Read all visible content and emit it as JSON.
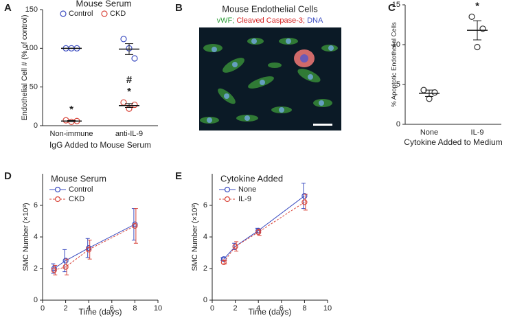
{
  "chart_data": [
    {
      "type": "dotplot",
      "panel": "A",
      "title": "Mouse Serum",
      "ylabel": "Endothelial Cell # (% of control)",
      "xlabel": "IgG Added to Mouse Serum",
      "categories": [
        "Non-immune",
        "anti-IL-9"
      ],
      "series": [
        {
          "name": "Control",
          "color": "#3b4cc0",
          "values": [
            [
              100,
              100,
              100
            ],
            [
              112,
              100,
              87
            ]
          ],
          "mean": [
            100,
            99
          ],
          "sem": [
            0,
            7
          ]
        },
        {
          "name": "CKD",
          "color": "#d9453a",
          "values": [
            [
              7,
              5,
              6
            ],
            [
              30,
              22,
              27
            ]
          ],
          "mean": [
            6,
            26
          ],
          "sem": [
            0.7,
            2.5
          ]
        }
      ],
      "annotations": [
        {
          "category": "Non-immune",
          "text": "*"
        },
        {
          "category": "anti-IL-9",
          "text": "*"
        },
        {
          "category": "anti-IL-9",
          "text": "#"
        }
      ],
      "ylim": [
        0,
        150
      ],
      "yticks": [
        0,
        50,
        100,
        150
      ]
    },
    {
      "type": "dotplot",
      "panel": "C",
      "ylabel": "% Apoptotic Endothelial Cells",
      "xlabel": "Cytokine Added to Medium",
      "categories": [
        "None",
        "IL-9"
      ],
      "series": [
        {
          "color": "#333333",
          "values": [
            [
              4.3,
              3.2,
              4.0
            ],
            [
              13.5,
              9.7,
              12.0
            ]
          ],
          "mean": [
            3.9,
            11.8
          ],
          "sem": [
            0.4,
            1.2
          ]
        }
      ],
      "annotations": [
        {
          "category": "IL-9",
          "text": "*"
        }
      ],
      "ylim": [
        0,
        15
      ],
      "yticks": [
        0,
        5,
        10,
        15
      ]
    },
    {
      "type": "line",
      "panel": "D",
      "title": "Mouse Serum",
      "ylabel": "SMC Number (×10³)",
      "xlabel": "Time (days)",
      "x": [
        1,
        2,
        4,
        8
      ],
      "series": [
        {
          "name": "Control",
          "color": "#3b4cc0",
          "dash": false,
          "values": [
            2.0,
            2.5,
            3.3,
            4.8
          ],
          "err": [
            0.3,
            0.7,
            0.6,
            1.0
          ]
        },
        {
          "name": "CKD",
          "color": "#d9453a",
          "dash": true,
          "values": [
            1.9,
            2.1,
            3.2,
            4.7
          ],
          "err": [
            0.3,
            0.5,
            0.6,
            1.1
          ]
        }
      ],
      "xlim": [
        0,
        10
      ],
      "xticks": [
        0,
        2,
        4,
        6,
        8,
        10
      ],
      "ylim": [
        0,
        8
      ],
      "yticks": [
        0,
        2,
        4,
        6
      ]
    },
    {
      "type": "line",
      "panel": "E",
      "title": "Cytokine Added",
      "ylabel": "SMC Number (×10³)",
      "xlabel": "Time (days)",
      "x": [
        1,
        2,
        4,
        8
      ],
      "series": [
        {
          "name": "None",
          "color": "#3b4cc0",
          "dash": false,
          "values": [
            2.6,
            3.4,
            4.4,
            6.6
          ],
          "err": [
            0.1,
            0.2,
            0.15,
            0.8
          ]
        },
        {
          "name": "IL-9",
          "color": "#d9453a",
          "dash": true,
          "values": [
            2.4,
            3.4,
            4.3,
            6.2
          ],
          "err": [
            0.1,
            0.3,
            0.2,
            0.5
          ]
        }
      ],
      "xlim": [
        0,
        10
      ],
      "xticks": [
        0,
        2,
        4,
        6,
        8,
        10
      ],
      "ylim": [
        0,
        8
      ],
      "yticks": [
        0,
        2,
        4,
        6
      ]
    }
  ],
  "panel_b": {
    "label": "B",
    "title": "Mouse Endothelial Cells",
    "stains": [
      "vWF;",
      "Cleaved Caspase-3;",
      "DNA"
    ]
  }
}
